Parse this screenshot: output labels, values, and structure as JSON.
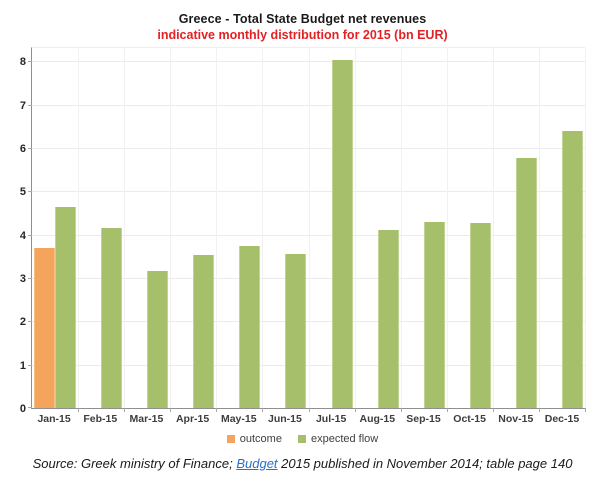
{
  "title": "Greece - Total State Budget net revenues",
  "subtitle": "indicative monthly distribution for 2015 (bn EUR)",
  "chart_data": {
    "type": "bar",
    "title": "Greece - Total State Budget net revenues",
    "subtitle": "indicative monthly distribution for 2015 (bn EUR)",
    "categories": [
      "Jan-15",
      "Feb-15",
      "Mar-15",
      "Apr-15",
      "May-15",
      "Jun-15",
      "Jul-15",
      "Aug-15",
      "Sep-15",
      "Oct-15",
      "Nov-15",
      "Dec-15"
    ],
    "series": [
      {
        "name": "outcome",
        "color": "#F5A45C",
        "edge_color": "#F8BC85",
        "values": [
          3.68,
          null,
          null,
          null,
          null,
          null,
          null,
          null,
          null,
          null,
          null,
          null
        ]
      },
      {
        "name": "expected flow",
        "color": "#A6BF6B",
        "edge_color": "#C2D494",
        "values": [
          4.63,
          4.15,
          3.17,
          3.53,
          3.73,
          3.56,
          8.02,
          4.1,
          4.3,
          4.26,
          5.76,
          6.4
        ]
      }
    ],
    "xlabel": "",
    "ylabel": "",
    "ylim": [
      0,
      8.35
    ],
    "yticks": [
      0,
      1,
      2,
      3,
      4,
      5,
      6,
      7,
      8
    ],
    "grid": true,
    "legend_position": "bottom"
  },
  "colors": {
    "subtitle_red": "#e32124",
    "axis_gray": "#8f8f8f",
    "link_blue": "#2a6fc9"
  },
  "footer": {
    "prefix": "Source: Greek ministry of Finance; ",
    "link_text": "Budget",
    "suffix": " 2015 published in November 2014; table page 140"
  }
}
